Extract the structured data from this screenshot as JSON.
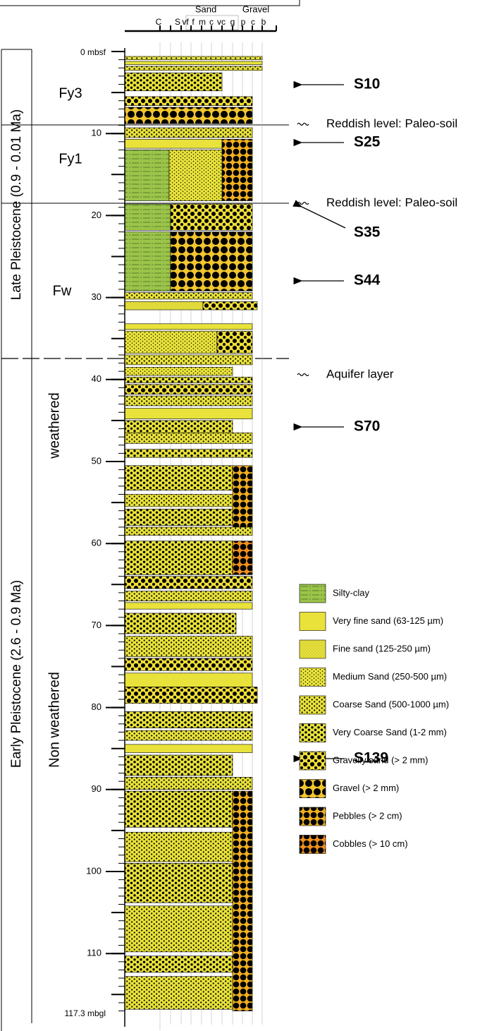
{
  "header": {
    "sand": "Sand",
    "gravel": "Gravel",
    "grain_sizes": [
      "C",
      "S",
      "vf",
      "f",
      "m",
      "c",
      "vc",
      "g",
      "p",
      "c",
      "b"
    ]
  },
  "depth_axis": {
    "top_label": "0 mbsf",
    "ticks": [
      10,
      20,
      30,
      40,
      50,
      60,
      70,
      80,
      90,
      100,
      110
    ],
    "bottom_label": "117.3 mbgl"
  },
  "units": {
    "late": "Late Pleistocene (0.9 - 0.01 Ma)",
    "early": "Early Pleistocene  (2.6 - 0.9 Ma)",
    "formations": [
      "Fy3",
      "Fy1",
      "Fw"
    ],
    "weathering": [
      "weathered",
      "Non weathered"
    ]
  },
  "annotations": [
    "Reddish level: Paleo-soil",
    "Reddish level: Paleo-soil",
    "Aquifer layer"
  ],
  "samples": [
    "S10",
    "S25",
    "S35",
    "S44",
    "S70",
    "S139"
  ],
  "legend": [
    "Silty-clay",
    "Very fine sand (63-125 µm)",
    "Fine sand (125-250 µm)",
    "Medium Sand (250-500 µm)",
    "Coarse Sand (500-1000 µm)",
    "Very Coarse Sand (1-2 mm)",
    "Gravelly sand (> 2 mm)",
    "Gravel (> 2 mm)",
    "Pebbles (> 2 cm)",
    "Cobbles (> 10 cm)"
  ]
}
